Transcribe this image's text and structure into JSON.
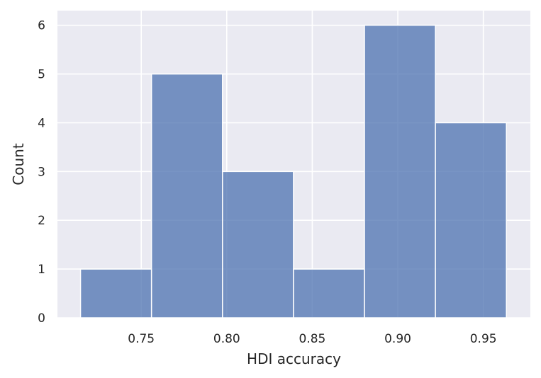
{
  "chart_data": {
    "type": "bar",
    "subtype": "histogram",
    "title": "",
    "xlabel": "HDI accuracy",
    "ylabel": "Count",
    "bin_edges": [
      0.7145,
      0.756,
      0.7975,
      0.839,
      0.8805,
      0.922,
      0.9635
    ],
    "values": [
      1,
      5,
      3,
      1,
      6,
      4
    ],
    "xlim": [
      0.701,
      0.9775
    ],
    "ylim": [
      0,
      6.3
    ],
    "xticks": [
      0.75,
      0.8,
      0.85,
      0.9,
      0.95
    ],
    "xtick_labels": [
      "0.75",
      "0.80",
      "0.85",
      "0.90",
      "0.95"
    ],
    "yticks": [
      0,
      1,
      2,
      3,
      4,
      5,
      6
    ],
    "ytick_labels": [
      "0",
      "1",
      "2",
      "3",
      "4",
      "5",
      "6"
    ],
    "grid": true,
    "legend": "none",
    "colors": {
      "bar_fill": "#4c72b0",
      "background": "#eaeaf2",
      "grid": "#ffffff",
      "text": "#262626"
    }
  }
}
